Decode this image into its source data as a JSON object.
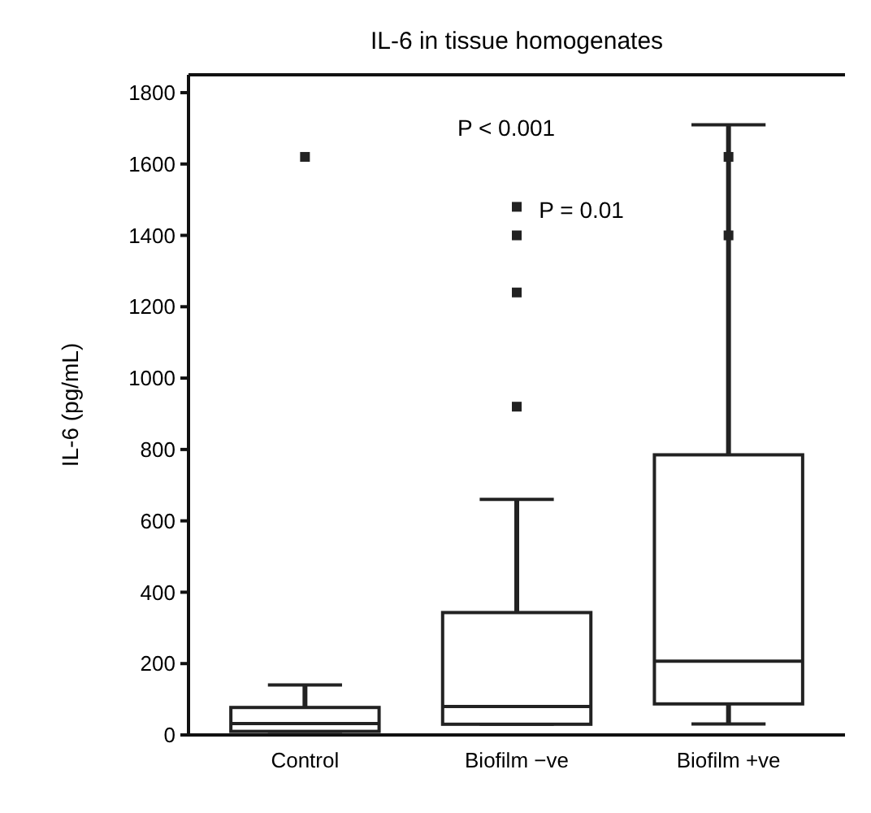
{
  "chart_data": {
    "type": "box",
    "title": "IL-6 in tissue homogenates",
    "ylabel": "IL-6 (pg/mL)",
    "categories": [
      "Control",
      "Biofilm −ve",
      "Biofilm +ve"
    ],
    "boxes": [
      {
        "low": 10,
        "q1": 10,
        "median": 32,
        "q3": 77,
        "high": 140,
        "outliers": [
          1620
        ]
      },
      {
        "low": 30,
        "q1": 30,
        "median": 80,
        "q3": 343,
        "high": 660,
        "outliers": [
          920,
          1240,
          1400,
          1480
        ]
      },
      {
        "low": 31,
        "q1": 87,
        "median": 207,
        "q3": 785,
        "high": 1710,
        "outliers": [
          1400,
          1620
        ]
      }
    ],
    "color": "#222222",
    "ylim": [
      0,
      1850
    ],
    "yticks": [
      0,
      200,
      400,
      600,
      800,
      1000,
      1200,
      1400,
      1600,
      1800
    ],
    "annotations": [
      "P < 0.001",
      "P = 0.01"
    ]
  }
}
